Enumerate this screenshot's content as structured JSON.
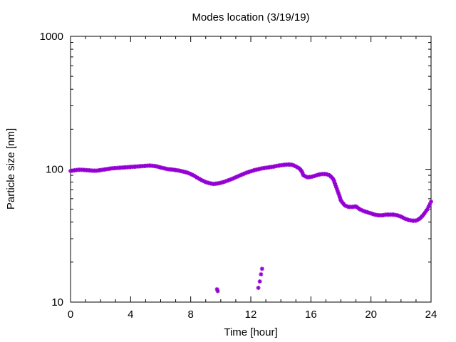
{
  "chart_data": {
    "type": "scatter",
    "title": "Modes location (3/19/19)",
    "xlabel": "Time [hour]",
    "ylabel": "Particle size [nm]",
    "xlim": [
      0,
      24
    ],
    "ylim": [
      10,
      1000
    ],
    "yscale": "log",
    "grid": false,
    "legend": "none",
    "x_ticks": [
      "0",
      "4",
      "8",
      "12",
      "16",
      "20",
      "24"
    ],
    "y_ticks": [
      "10",
      "100",
      "1000"
    ],
    "marker_color": "#9400d3",
    "series": [
      {
        "points": [
          [
            0.0,
            97
          ],
          [
            0.25,
            98
          ],
          [
            0.5,
            99
          ],
          [
            0.75,
            99
          ],
          [
            1.0,
            98.5
          ],
          [
            1.25,
            98
          ],
          [
            1.5,
            97.5
          ],
          [
            1.75,
            97.5
          ],
          [
            2.0,
            98.5
          ],
          [
            2.25,
            99.5
          ],
          [
            2.5,
            100.5
          ],
          [
            2.75,
            101.5
          ],
          [
            3.0,
            102
          ],
          [
            3.25,
            102.5
          ],
          [
            3.5,
            103
          ],
          [
            3.75,
            103.5
          ],
          [
            4.0,
            104
          ],
          [
            4.25,
            104.5
          ],
          [
            4.5,
            105
          ],
          [
            4.75,
            105.5
          ],
          [
            5.0,
            106
          ],
          [
            5.25,
            106.5
          ],
          [
            5.5,
            106
          ],
          [
            5.75,
            105
          ],
          [
            6.0,
            103
          ],
          [
            6.25,
            101.5
          ],
          [
            6.5,
            100
          ],
          [
            6.75,
            99.5
          ],
          [
            7.0,
            98.5
          ],
          [
            7.25,
            97.5
          ],
          [
            7.5,
            96
          ],
          [
            7.75,
            94.5
          ],
          [
            8.0,
            92
          ],
          [
            8.25,
            89
          ],
          [
            8.5,
            85.5
          ],
          [
            8.75,
            82.5
          ],
          [
            9.0,
            80
          ],
          [
            9.25,
            78.5
          ],
          [
            9.5,
            77.5
          ],
          [
            9.75,
            78
          ],
          [
            10.0,
            79
          ],
          [
            10.25,
            80.5
          ],
          [
            10.5,
            82.5
          ],
          [
            10.75,
            84.5
          ],
          [
            11.0,
            87
          ],
          [
            11.25,
            89.5
          ],
          [
            11.5,
            92
          ],
          [
            11.75,
            94.5
          ],
          [
            12.0,
            96.5
          ],
          [
            12.25,
            98.5
          ],
          [
            12.5,
            100
          ],
          [
            12.75,
            101.5
          ],
          [
            13.0,
            102.5
          ],
          [
            13.25,
            103.5
          ],
          [
            13.5,
            104.5
          ],
          [
            13.75,
            106
          ],
          [
            14.0,
            107
          ],
          [
            14.25,
            108
          ],
          [
            14.5,
            108.5
          ],
          [
            14.75,
            108
          ],
          [
            15.0,
            105
          ],
          [
            15.25,
            101
          ],
          [
            15.4,
            96
          ],
          [
            15.5,
            90
          ],
          [
            15.75,
            87
          ],
          [
            16.0,
            87.5
          ],
          [
            16.25,
            89
          ],
          [
            16.5,
            91
          ],
          [
            16.75,
            92
          ],
          [
            17.0,
            92
          ],
          [
            17.25,
            90
          ],
          [
            17.5,
            84
          ],
          [
            17.6,
            78
          ],
          [
            17.75,
            70
          ],
          [
            17.9,
            63
          ],
          [
            18.0,
            58
          ],
          [
            18.25,
            53.5
          ],
          [
            18.5,
            52
          ],
          [
            18.75,
            52
          ],
          [
            19.0,
            52.5
          ],
          [
            19.25,
            50
          ],
          [
            19.5,
            48.5
          ],
          [
            19.75,
            47.5
          ],
          [
            20.0,
            46.5
          ],
          [
            20.25,
            45.5
          ],
          [
            20.5,
            45
          ],
          [
            20.75,
            45
          ],
          [
            21.0,
            45.5
          ],
          [
            21.25,
            45.5
          ],
          [
            21.5,
            45.5
          ],
          [
            21.75,
            45
          ],
          [
            22.0,
            44
          ],
          [
            22.25,
            42.5
          ],
          [
            22.5,
            41.5
          ],
          [
            22.75,
            41
          ],
          [
            23.0,
            41
          ],
          [
            23.25,
            42.5
          ],
          [
            23.5,
            45.5
          ],
          [
            23.75,
            50
          ],
          [
            24.0,
            57
          ]
        ]
      },
      {
        "points": [
          [
            9.75,
            12.5
          ],
          [
            9.8,
            12.1
          ],
          [
            12.5,
            12.8
          ],
          [
            12.6,
            14.3
          ],
          [
            12.68,
            16.2
          ],
          [
            12.75,
            17.8
          ]
        ]
      }
    ]
  }
}
